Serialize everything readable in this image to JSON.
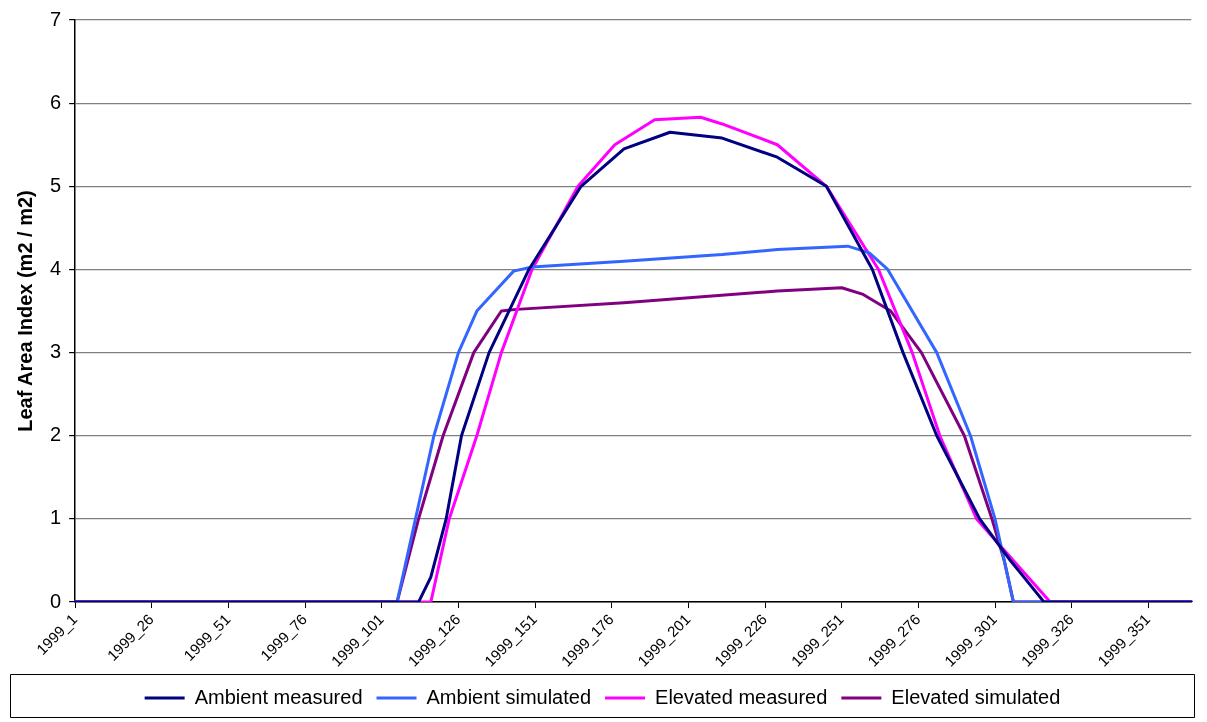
{
  "chart_data": {
    "type": "line",
    "ylabel": "Leaf Area Index (m2 / m2)",
    "ylim": [
      0,
      7
    ],
    "yticks": [
      0,
      1,
      2,
      3,
      4,
      5,
      6,
      7
    ],
    "grid": "y",
    "legend": "bottom",
    "marker": "none",
    "line_style": "solid",
    "categories": [
      "1999_1",
      null,
      null,
      null,
      null,
      null,
      null,
      null,
      null,
      null,
      null,
      null,
      null,
      null,
      null,
      null,
      null,
      null,
      null,
      null,
      null,
      null,
      null,
      null,
      null,
      "1999_26",
      null,
      null,
      null,
      null,
      null,
      null,
      null,
      null,
      null,
      null,
      null,
      null,
      null,
      null,
      null,
      null,
      null,
      null,
      null,
      null,
      null,
      null,
      null,
      null,
      "1999_51",
      null,
      null,
      null,
      null,
      null,
      null,
      null,
      null,
      null,
      null,
      null,
      null,
      null,
      null,
      null,
      null,
      null,
      null,
      null,
      null,
      null,
      null,
      null,
      null,
      "1999_76",
      null,
      null,
      null,
      null,
      null,
      null,
      null,
      null,
      null,
      null,
      null,
      null,
      null,
      null,
      null,
      null,
      null,
      null,
      null,
      null,
      null,
      null,
      null,
      null,
      "1999_101",
      null,
      null,
      null,
      null,
      null,
      null,
      null,
      null,
      null,
      null,
      null,
      null,
      null,
      null,
      null,
      null,
      null,
      null,
      null,
      null,
      null,
      null,
      null,
      null,
      "1999_126",
      null,
      null,
      null,
      null,
      null,
      null,
      null,
      null,
      null,
      null,
      null,
      null,
      null,
      null,
      null,
      null,
      null,
      null,
      null,
      null,
      null,
      null,
      null,
      null,
      "1999_151",
      null,
      null,
      null,
      null,
      null,
      null,
      null,
      null,
      null,
      null,
      null,
      null,
      null,
      null,
      null,
      null,
      null,
      null,
      null,
      null,
      null,
      null,
      null,
      null,
      "1999_176",
      null,
      null,
      null,
      null,
      null,
      null,
      null,
      null,
      null,
      null,
      null,
      null,
      null,
      null,
      null,
      null,
      null,
      null,
      null,
      null,
      null,
      null,
      null,
      null,
      "1999_201",
      null,
      null,
      null,
      null,
      null,
      null,
      null,
      null,
      null,
      null,
      null,
      null,
      null,
      null,
      null,
      null,
      null,
      null,
      null,
      null,
      null,
      null,
      null,
      null,
      "1999_226",
      null,
      null,
      null,
      null,
      null,
      null,
      null,
      null,
      null,
      null,
      null,
      null,
      null,
      null,
      null,
      null,
      null,
      null,
      null,
      null,
      null,
      null,
      null,
      null,
      "1999_251",
      null,
      null,
      null,
      null,
      null,
      null,
      null,
      null,
      null,
      null,
      null,
      null,
      null,
      null,
      null,
      null,
      null,
      null,
      null,
      null,
      null,
      null,
      null,
      null,
      "1999_276",
      null,
      null,
      null,
      null,
      null,
      null,
      null,
      null,
      null,
      null,
      null,
      null,
      null,
      null,
      null,
      null,
      null,
      null,
      null,
      null,
      null,
      null,
      null,
      null,
      "1999_301",
      null,
      null,
      null,
      null,
      null,
      null,
      null,
      null,
      null,
      null,
      null,
      null,
      null,
      null,
      null,
      null,
      null,
      null,
      null,
      null,
      null,
      null,
      null,
      null,
      "1999_326",
      null,
      null,
      null,
      null,
      null,
      null,
      null,
      null,
      null,
      null,
      null,
      null,
      null,
      null,
      null,
      null,
      null,
      null,
      null,
      null,
      null,
      null,
      null,
      null,
      "1999_351",
      null,
      null,
      null,
      null,
      null,
      null,
      null,
      null,
      null,
      null,
      null,
      null,
      null,
      null
    ],
    "series": [
      {
        "name": "Ambient measured",
        "color": "#000080",
        "values": [
          0,
          null,
          null,
          null,
          null,
          null,
          null,
          null,
          null,
          null,
          null,
          null,
          null,
          null,
          null,
          null,
          null,
          null,
          null,
          null,
          null,
          null,
          null,
          null,
          null,
          null,
          null,
          null,
          null,
          null,
          null,
          null,
          null,
          null,
          null,
          null,
          null,
          null,
          null,
          null,
          null,
          null,
          null,
          null,
          null,
          null,
          null,
          null,
          null,
          null,
          null,
          null,
          null,
          null,
          null,
          null,
          null,
          null,
          null,
          null,
          null,
          null,
          null,
          null,
          null,
          null,
          null,
          null,
          null,
          null,
          null,
          null,
          null,
          null,
          null,
          null,
          null,
          null,
          null,
          null,
          null,
          null,
          null,
          null,
          null,
          null,
          null,
          null,
          null,
          null,
          null,
          null,
          null,
          null,
          null,
          null,
          null,
          null,
          null,
          null,
          null,
          null,
          null,
          null,
          null,
          null,
          null,
          null,
          null,
          null,
          null,
          null,
          0,
          null,
          null,
          null,
          0.3,
          null,
          null,
          null,
          null,
          1,
          null,
          null,
          null,
          null,
          2,
          null,
          null,
          null,
          null,
          null,
          null,
          null,
          null,
          3,
          null,
          null,
          null,
          null,
          null,
          null,
          null,
          null,
          null,
          null,
          null,
          null,
          4,
          null,
          null,
          null,
          null,
          null,
          null,
          null,
          null,
          null,
          null,
          null,
          null,
          null,
          null,
          null,
          null,
          5,
          null,
          null,
          null,
          null,
          null,
          null,
          null,
          null,
          null,
          null,
          null,
          null,
          null,
          5.45,
          null,
          null,
          null,
          null,
          null,
          null,
          null,
          null,
          null,
          null,
          null,
          null,
          null,
          null,
          5.65,
          null,
          null,
          null,
          null,
          null,
          null,
          null,
          null,
          null,
          null,
          null,
          null,
          null,
          null,
          null,
          null,
          5.58,
          null,
          null,
          null,
          null,
          null,
          null,
          null,
          null,
          null,
          null,
          null,
          null,
          null,
          null,
          null,
          null,
          null,
          5.35,
          null,
          null,
          null,
          null,
          null,
          null,
          null,
          null,
          null,
          null,
          null,
          null,
          null,
          null,
          null,
          5,
          null,
          null,
          null,
          null,
          null,
          null,
          null,
          null,
          null,
          null,
          null,
          null,
          null,
          null,
          4,
          null,
          null,
          null,
          null,
          null,
          null,
          null,
          null,
          null,
          3,
          null,
          null,
          null,
          null,
          null,
          null,
          null,
          null,
          null,
          null,
          2,
          null,
          null,
          null,
          null,
          null,
          null,
          null,
          null,
          null,
          null,
          null,
          null,
          null,
          1,
          null,
          null,
          null,
          null,
          null,
          null,
          null,
          null,
          null,
          0.5,
          null,
          null,
          null,
          null,
          null,
          null,
          null,
          null,
          null,
          null,
          0,
          null,
          null,
          null,
          null,
          null,
          null,
          null,
          null,
          null,
          null,
          null,
          null,
          null,
          null,
          null,
          null,
          null,
          null,
          null,
          null,
          null,
          null,
          null,
          null,
          null,
          null,
          null,
          null,
          null,
          null,
          null,
          null,
          null,
          null,
          null,
          null,
          null,
          null,
          null,
          null,
          null,
          null,
          null,
          null,
          null,
          null,
          null,
          0
        ]
      },
      {
        "name": "Ambient simulated",
        "color": "#3366ff",
        "values": [
          0,
          null,
          null,
          null,
          null,
          null,
          null,
          null,
          null,
          null,
          null,
          null,
          null,
          null,
          null,
          null,
          null,
          null,
          null,
          null,
          null,
          null,
          null,
          null,
          null,
          null,
          null,
          null,
          null,
          null,
          null,
          null,
          null,
          null,
          null,
          null,
          null,
          null,
          null,
          null,
          null,
          null,
          null,
          null,
          null,
          null,
          null,
          null,
          null,
          null,
          null,
          null,
          null,
          null,
          null,
          null,
          null,
          null,
          null,
          null,
          null,
          null,
          null,
          null,
          null,
          null,
          null,
          null,
          null,
          null,
          null,
          null,
          null,
          null,
          null,
          null,
          null,
          null,
          null,
          null,
          null,
          null,
          null,
          null,
          null,
          null,
          null,
          null,
          null,
          null,
          null,
          null,
          null,
          null,
          null,
          null,
          null,
          null,
          null,
          null,
          null,
          null,
          null,
          null,
          null,
          0,
          null,
          null,
          null,
          null,
          null,
          1,
          null,
          null,
          null,
          null,
          null,
          2,
          null,
          null,
          null,
          null,
          null,
          null,
          null,
          3,
          null,
          null,
          null,
          null,
          null,
          3.5,
          null,
          null,
          null,
          null,
          null,
          null,
          null,
          null,
          null,
          null,
          null,
          3.98,
          null,
          null,
          null,
          null,
          null,
          4.03,
          null,
          null,
          null,
          null,
          null,
          null,
          null,
          null,
          null,
          null,
          null,
          null,
          null,
          null,
          null,
          null,
          null,
          null,
          null,
          null,
          null,
          null,
          null,
          null,
          null,
          null,
          null,
          null,
          null,
          4.1,
          null,
          null,
          null,
          null,
          null,
          null,
          null,
          null,
          null,
          null,
          null,
          null,
          null,
          null,
          null,
          null,
          null,
          null,
          null,
          null,
          null,
          null,
          null,
          null,
          null,
          null,
          null,
          null,
          null,
          null,
          null,
          4.18,
          null,
          null,
          null,
          null,
          null,
          null,
          null,
          null,
          null,
          null,
          null,
          null,
          null,
          null,
          null,
          null,
          null,
          4.24,
          null,
          null,
          null,
          null,
          null,
          null,
          null,
          null,
          null,
          null,
          null,
          null,
          null,
          null,
          null,
          null,
          null,
          null,
          null,
          null,
          null,
          null,
          4.28,
          null,
          null,
          null,
          null,
          null,
          null,
          4.2,
          null,
          null,
          null,
          null,
          null,
          4,
          null,
          null,
          null,
          null,
          null,
          null,
          null,
          null,
          null,
          null,
          null,
          null,
          null,
          null,
          null,
          3,
          null,
          null,
          null,
          null,
          null,
          null,
          null,
          null,
          null,
          null,
          2,
          null,
          null,
          null,
          null,
          null,
          null,
          null,
          1,
          null,
          null,
          null,
          null,
          null,
          0,
          null,
          null,
          null,
          null,
          null,
          null,
          null,
          null,
          null,
          null,
          null,
          null,
          null,
          null,
          null,
          null,
          null,
          null,
          null,
          null,
          null,
          null,
          null,
          null,
          null,
          null,
          null,
          null,
          null,
          null,
          null,
          null,
          null,
          null,
          null,
          null,
          null,
          null,
          null,
          null,
          null,
          null,
          null,
          null,
          null,
          null,
          null,
          null,
          null,
          null,
          null,
          null,
          null,
          null,
          null,
          null,
          null,
          0
        ]
      },
      {
        "name": "Elevated measured",
        "color": "#ff00ff",
        "values": [
          0,
          null,
          null,
          null,
          null,
          null,
          null,
          null,
          null,
          null,
          null,
          null,
          null,
          null,
          null,
          null,
          null,
          null,
          null,
          null,
          null,
          null,
          null,
          null,
          null,
          null,
          null,
          null,
          null,
          null,
          null,
          null,
          null,
          null,
          null,
          null,
          null,
          null,
          null,
          null,
          null,
          null,
          null,
          null,
          null,
          null,
          null,
          null,
          null,
          null,
          null,
          null,
          null,
          null,
          null,
          null,
          null,
          null,
          null,
          null,
          null,
          null,
          null,
          null,
          null,
          null,
          null,
          null,
          null,
          null,
          null,
          null,
          null,
          null,
          null,
          null,
          null,
          null,
          null,
          null,
          null,
          null,
          null,
          null,
          null,
          null,
          null,
          null,
          null,
          null,
          null,
          null,
          null,
          null,
          null,
          null,
          null,
          null,
          null,
          null,
          null,
          null,
          null,
          null,
          null,
          null,
          null,
          null,
          null,
          null,
          null,
          null,
          null,
          null,
          null,
          null,
          0,
          null,
          null,
          null,
          null,
          null,
          1,
          null,
          null,
          null,
          null,
          null,
          null,
          null,
          null,
          2,
          null,
          null,
          null,
          null,
          null,
          null,
          null,
          3,
          null,
          null,
          null,
          null,
          null,
          null,
          null,
          null,
          null,
          4,
          null,
          null,
          null,
          null,
          null,
          null,
          null,
          null,
          null,
          null,
          null,
          null,
          null,
          null,
          5,
          null,
          null,
          null,
          null,
          null,
          null,
          null,
          null,
          null,
          null,
          null,
          5.5,
          null,
          null,
          null,
          null,
          null,
          null,
          null,
          null,
          null,
          null,
          null,
          null,
          5.8,
          null,
          null,
          null,
          null,
          null,
          null,
          null,
          null,
          null,
          null,
          null,
          null,
          null,
          null,
          5.83,
          null,
          null,
          null,
          null,
          null,
          null,
          5.75,
          null,
          null,
          null,
          null,
          null,
          null,
          null,
          null,
          null,
          null,
          null,
          null,
          null,
          null,
          null,
          null,
          null,
          5.5,
          null,
          null,
          null,
          null,
          null,
          null,
          null,
          null,
          null,
          null,
          null,
          null,
          null,
          null,
          null,
          5,
          null,
          null,
          null,
          null,
          null,
          null,
          null,
          null,
          null,
          null,
          null,
          null,
          null,
          null,
          null,
          null,
          4,
          null,
          null,
          null,
          null,
          null,
          null,
          null,
          null,
          null,
          null,
          3,
          null,
          null,
          null,
          null,
          null,
          null,
          null,
          null,
          2,
          null,
          null,
          null,
          null,
          null,
          null,
          null,
          null,
          null,
          null,
          null,
          1,
          null,
          null,
          null,
          null,
          null,
          null,
          null,
          null,
          null,
          null,
          null,
          null,
          null,
          null,
          null,
          null,
          null,
          null,
          null,
          null,
          null,
          null,
          null,
          0,
          null,
          null,
          null,
          null,
          null,
          null,
          null,
          null,
          null,
          null,
          null,
          null,
          null,
          null,
          null,
          null,
          null,
          null,
          null,
          null,
          null,
          null,
          null,
          null,
          null,
          null,
          null,
          null,
          null,
          null,
          null,
          null,
          null,
          null,
          null,
          null,
          null,
          null,
          null,
          null,
          null,
          null,
          null,
          null,
          null,
          0
        ]
      },
      {
        "name": "Elevated simulated",
        "color": "#800080",
        "values": [
          0,
          null,
          null,
          null,
          null,
          null,
          null,
          null,
          null,
          null,
          null,
          null,
          null,
          null,
          null,
          null,
          null,
          null,
          null,
          null,
          null,
          null,
          null,
          null,
          null,
          null,
          null,
          null,
          null,
          null,
          null,
          null,
          null,
          null,
          null,
          null,
          null,
          null,
          null,
          null,
          null,
          null,
          null,
          null,
          null,
          null,
          null,
          null,
          null,
          null,
          null,
          null,
          null,
          null,
          null,
          null,
          null,
          null,
          null,
          null,
          null,
          null,
          null,
          null,
          null,
          null,
          null,
          null,
          null,
          null,
          null,
          null,
          null,
          null,
          null,
          null,
          null,
          null,
          null,
          null,
          null,
          null,
          null,
          null,
          null,
          null,
          null,
          null,
          null,
          null,
          null,
          null,
          null,
          null,
          null,
          null,
          null,
          null,
          null,
          null,
          null,
          null,
          null,
          null,
          null,
          0,
          null,
          null,
          null,
          null,
          null,
          null,
          1,
          null,
          null,
          null,
          null,
          null,
          null,
          null,
          2,
          null,
          null,
          null,
          null,
          null,
          null,
          null,
          null,
          null,
          3,
          null,
          null,
          null,
          null,
          null,
          null,
          null,
          null,
          3.5,
          null,
          null,
          null,
          null,
          3.52,
          null,
          null,
          null,
          null,
          null,
          null,
          null,
          null,
          null,
          null,
          null,
          null,
          null,
          null,
          null,
          null,
          null,
          null,
          null,
          null,
          null,
          null,
          null,
          null,
          null,
          null,
          null,
          null,
          null,
          null,
          null,
          null,
          null,
          null,
          3.6,
          null,
          null,
          null,
          null,
          null,
          null,
          null,
          null,
          null,
          null,
          null,
          null,
          null,
          null,
          null,
          null,
          null,
          null,
          null,
          null,
          null,
          null,
          null,
          null,
          null,
          null,
          null,
          null,
          null,
          null,
          null,
          null,
          null,
          null,
          null,
          null,
          null,
          null,
          null,
          null,
          null,
          null,
          null,
          null,
          null,
          null,
          null,
          null,
          null,
          3.74,
          null,
          null,
          null,
          null,
          null,
          null,
          null,
          null,
          null,
          null,
          null,
          null,
          null,
          null,
          null,
          null,
          null,
          null,
          null,
          null,
          3.78,
          null,
          null,
          null,
          null,
          null,
          null,
          3.7,
          null,
          null,
          null,
          null,
          null,
          null,
          null,
          null,
          3.5,
          null,
          null,
          null,
          null,
          null,
          null,
          null,
          null,
          null,
          3,
          null,
          null,
          null,
          null,
          null,
          null,
          null,
          null,
          null,
          null,
          null,
          null,
          null,
          2,
          null,
          null,
          null,
          null,
          null,
          null,
          null,
          null,
          1,
          null,
          null,
          null,
          0.5,
          null,
          null,
          0,
          null,
          null,
          null,
          null,
          null,
          null,
          null,
          null,
          null,
          null,
          null,
          null,
          null,
          null,
          null,
          null,
          null,
          null,
          null,
          null,
          null,
          null,
          null,
          null,
          null,
          null,
          null,
          null,
          null,
          null,
          null,
          null,
          null,
          null,
          null,
          null,
          null,
          null,
          null,
          null,
          null,
          null,
          null,
          null,
          null,
          null,
          null,
          null,
          null,
          null,
          null,
          null,
          null,
          null,
          null,
          null,
          null,
          0
        ]
      }
    ]
  }
}
